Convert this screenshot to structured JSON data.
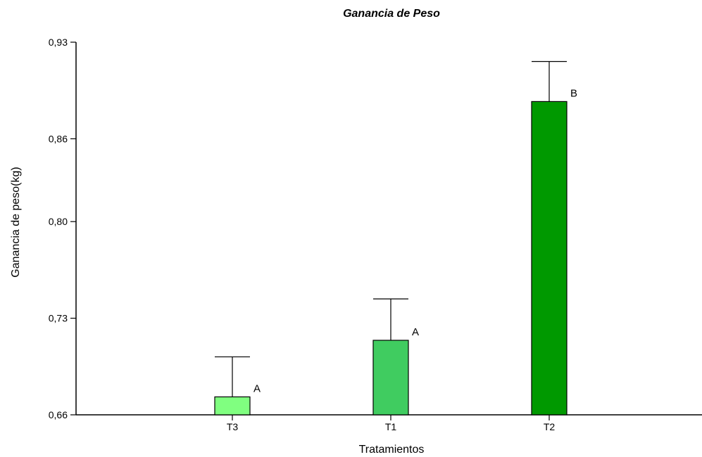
{
  "chart_data": {
    "type": "bar",
    "title": "Ganancia de Peso",
    "xlabel": "Tratamientos",
    "ylabel": "Ganancia de peso(kg)",
    "ylim": [
      0.66,
      0.93
    ],
    "yticks": [
      0.66,
      0.73,
      0.8,
      0.86,
      0.93
    ],
    "ytick_labels": [
      "0,66",
      "0,73",
      "0,80",
      "0,86",
      "0,93"
    ],
    "categories": [
      "T3",
      "T1",
      "T2"
    ],
    "values": [
      0.673,
      0.714,
      0.887
    ],
    "error_upper": [
      0.702,
      0.744,
      0.916
    ],
    "group_letters": [
      "A",
      "A",
      "B"
    ],
    "colors": [
      "#80ff80",
      "#40cc60",
      "#009900"
    ],
    "grid": false,
    "legend": "none"
  }
}
